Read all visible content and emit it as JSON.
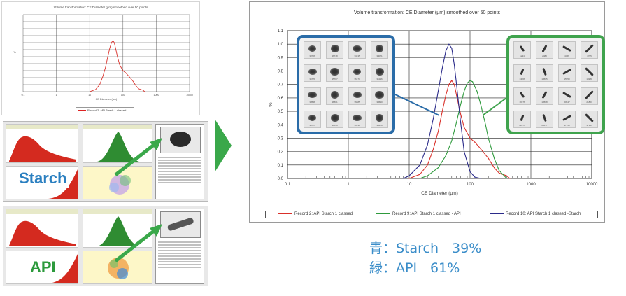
{
  "small_chart": {
    "title": "Volume transformation: CE Diameter (µm) smoothed over 50 points",
    "xlabel": "CE Diameter (µm)",
    "ylabel": "%",
    "xticks": [
      "0.1",
      "1",
      "10",
      "100",
      "1000",
      "10000"
    ],
    "legend": "Record 2: API Starch 1 classed"
  },
  "screenshots": [
    {
      "label": "Starch",
      "label_color": "#2a7fc0",
      "shape_color": "#2a2a2a"
    },
    {
      "label": "API",
      "label_color": "#2c9a3c",
      "shape_color": "#555555"
    }
  ],
  "arrow_color": "#3aa84a",
  "main_chart": {
    "title": "Volume transformation: CE Diameter (µm) smoothed over 50 points",
    "xlabel": "CE Diameter (µm)",
    "ylabel": "%",
    "xticks": [
      "0.1",
      "1",
      "10",
      "100",
      "1000",
      "10000"
    ],
    "yticks": [
      "0.0",
      "0.1",
      "0.2",
      "0.3",
      "0.4",
      "0.5",
      "0.6",
      "0.7",
      "0.8",
      "0.9",
      "1.0",
      "1.1"
    ]
  },
  "chart_data": {
    "type": "line",
    "title": "Volume transformation: CE Diameter (µm) smoothed over 50 points",
    "xlabel": "CE Diameter (µm)",
    "ylabel": "%",
    "xscale": "log",
    "xlim": [
      0.1,
      10000
    ],
    "ylim": [
      0,
      1.1
    ],
    "grid": true,
    "legend_position": "bottom",
    "series": [
      {
        "name": "Record 2: API Starch 1 classed",
        "color": "#d9302a",
        "x": [
          10,
          15,
          20,
          25,
          30,
          35,
          40,
          45,
          50,
          55,
          60,
          70,
          80,
          100,
          120,
          150,
          200,
          250,
          300,
          400,
          450
        ],
        "y": [
          0.0,
          0.03,
          0.1,
          0.22,
          0.35,
          0.5,
          0.62,
          0.7,
          0.73,
          0.7,
          0.62,
          0.48,
          0.38,
          0.3,
          0.27,
          0.22,
          0.15,
          0.08,
          0.04,
          0.02,
          0.0
        ]
      },
      {
        "name": "Record 9: API Starch 1 classed - API",
        "color": "#2e9a3c",
        "x": [
          15,
          20,
          30,
          40,
          50,
          60,
          70,
          80,
          90,
          100,
          110,
          130,
          150,
          180,
          200,
          250,
          300,
          400
        ],
        "y": [
          0.0,
          0.02,
          0.08,
          0.17,
          0.28,
          0.42,
          0.55,
          0.65,
          0.71,
          0.73,
          0.72,
          0.65,
          0.55,
          0.4,
          0.3,
          0.15,
          0.06,
          0.0
        ]
      },
      {
        "name": "Record 10: API Starch 1 classed -Starch",
        "color": "#2b2b8a",
        "x": [
          8,
          10,
          15,
          20,
          25,
          30,
          35,
          40,
          45,
          50,
          55,
          60,
          70,
          80,
          100,
          120,
          150
        ],
        "y": [
          0.0,
          0.02,
          0.1,
          0.25,
          0.45,
          0.65,
          0.82,
          0.95,
          1.0,
          0.97,
          0.85,
          0.7,
          0.42,
          0.2,
          0.05,
          0.01,
          0.0
        ]
      }
    ]
  },
  "zoom_boxes": {
    "starch": {
      "color": "#2a6ca8",
      "labels": [
        "33726",
        "36748",
        "33435",
        "34071",
        "35779",
        "35787",
        "36173",
        "36196",
        "38548",
        "38561",
        "36685",
        "38690",
        "38775",
        "39059",
        "39139",
        "39479"
      ]
    },
    "api": {
      "color": "#3fa34d",
      "labels": [
        "1234",
        "2483",
        "4456",
        "4765",
        "14066",
        "14565",
        "15950",
        "15980",
        "19376",
        "19568",
        "20547",
        "21807",
        "22677",
        "23677",
        "37150",
        "37155"
      ]
    }
  },
  "results": [
    "青：Starch　39%",
    "緑：API　61%"
  ]
}
